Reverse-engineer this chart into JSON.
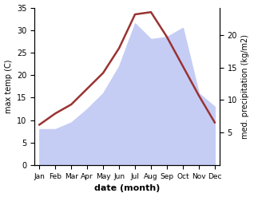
{
  "months": [
    "Jan",
    "Feb",
    "Mar",
    "Apr",
    "May",
    "Jun",
    "Jul",
    "Aug",
    "Sep",
    "Oct",
    "Nov",
    "Dec"
  ],
  "temp_values": [
    9.0,
    11.5,
    13.5,
    17.0,
    20.5,
    26.0,
    33.5,
    34.0,
    28.5,
    22.0,
    15.5,
    9.5
  ],
  "precip_values_left_scale": [
    8.0,
    8.0,
    9.5,
    12.5,
    16.0,
    22.0,
    31.5,
    28.0,
    28.5,
    30.5,
    16.0,
    13.0
  ],
  "temp_color": "#993333",
  "precip_fill_color": "#c5cdf5",
  "ylabel_left": "max temp (C)",
  "ylabel_right": "med. precipitation (kg/m2)",
  "xlabel": "date (month)",
  "ylim_left": [
    0,
    35
  ],
  "ylim_right": [
    0,
    24.17
  ],
  "yticks_left": [
    0,
    5,
    10,
    15,
    20,
    25,
    30,
    35
  ],
  "yticks_right": [
    5,
    10,
    15,
    20
  ],
  "background_color": "#ffffff",
  "line_width": 1.8
}
